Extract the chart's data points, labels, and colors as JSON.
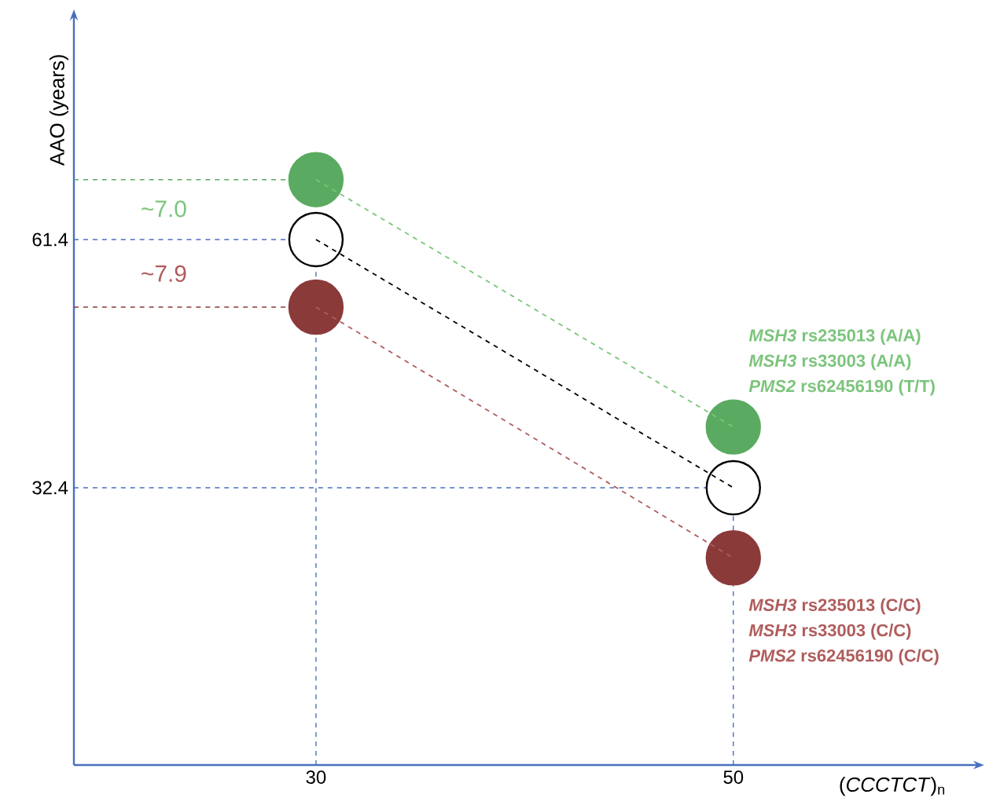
{
  "chart_data": {
    "type": "line",
    "xlabel": "(*CCCTCT*)$_{n}$",
    "ylabel": "AAO (years)",
    "x": [
      30,
      50
    ],
    "xlim": [
      18.4,
      61.5
    ],
    "ylim": [
      0,
      87
    ],
    "xticks": [
      30,
      50
    ],
    "yticks": [
      61.4,
      32.4
    ],
    "marker": "circle",
    "line_style": "dashed",
    "grid": false,
    "series": [
      {
        "color": "#7cc47c",
        "colors": [
          "#5aab61",
          "#5aab61"
        ],
        "values": [
          68.4,
          39.5
        ]
      },
      {
        "color": "#ffffff",
        "values": [
          61.4,
          32.4
        ]
      },
      {
        "color": "#b05c5c",
        "colors": [
          "#8b3a3a",
          "#8b3a3a"
        ],
        "values": [
          53.5,
          24.2
        ]
      }
    ],
    "ref_lines": [
      {
        "axis": "y",
        "value": 68.4,
        "color": "#5aab61",
        "line_style": "dashed"
      },
      {
        "axis": "y",
        "value": 61.4,
        "color": "#4a6fbf",
        "line_style": "dashed"
      },
      {
        "axis": "y",
        "value": 53.5,
        "color": "#8b3a3a",
        "line_style": "dashed"
      },
      {
        "axis": "y",
        "value": 32.4,
        "color": "#4a6fbf",
        "line_style": "dashed"
      },
      {
        "axis": "x",
        "value": 30,
        "color": "#4a6fbf",
        "line_style": "dashed"
      },
      {
        "axis": "x",
        "value": 50,
        "color": "#4a6fbf",
        "line_style": "dashed"
      }
    ],
    "annotations": [
      "~7.0",
      "~7.9",
      "*MSH3* rs235013 (A/A)",
      "*MSH3* rs33003 (A/A)",
      "*PMS2* rs62456190 (T/T)",
      "*MSH3* rs235013 (C/C)",
      "*MSH3* rs33003 (C/C)",
      "*PMS2* rs62456190 (C/C)"
    ]
  }
}
